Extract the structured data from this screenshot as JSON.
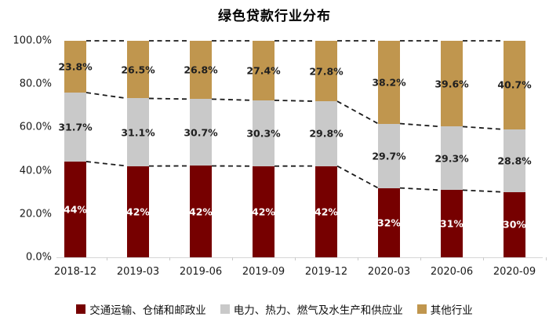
{
  "page": {
    "title": "绿色贷款行业分布"
  },
  "chart_data": {
    "type": "bar",
    "variant": "stacked-100-percent",
    "title": "绿色贷款行业分布",
    "categories": [
      "2018-12",
      "2019-03",
      "2019-06",
      "2019-09",
      "2019-12",
      "2020-03",
      "2020-06",
      "2020-09"
    ],
    "series": [
      {
        "name": "交通运输、仓储和邮政业",
        "color": "#760000",
        "label_color": "#FFFFFF",
        "label_inside": true,
        "values": [
          44,
          42,
          42,
          42,
          42,
          32,
          31,
          30
        ],
        "labels": [
          "44%",
          "42%",
          "42%",
          "42%",
          "42%",
          "32%",
          "31%",
          "30%"
        ]
      },
      {
        "name": "电力、热力、燃气及水生产和供应业",
        "color": "#C9C9C9",
        "label_color": "#1F1F1F",
        "label_inside": false,
        "values": [
          31.7,
          31.1,
          30.7,
          30.3,
          29.8,
          29.7,
          29.3,
          28.8
        ],
        "labels": [
          "31.7%",
          "31.1%",
          "30.7%",
          "30.3%",
          "29.8%",
          "29.7%",
          "29.3%",
          "28.8%"
        ]
      },
      {
        "name": "其他行业",
        "color": "#C0964E",
        "label_color": "#1F1F1F",
        "label_inside": false,
        "values": [
          23.8,
          26.5,
          26.8,
          27.4,
          27.8,
          38.2,
          39.6,
          40.7
        ],
        "labels": [
          "23.8%",
          "26.5%",
          "26.8%",
          "27.4%",
          "27.8%",
          "38.2%",
          "39.6%",
          "40.7%"
        ]
      }
    ],
    "y_axis": {
      "tick_labels": [
        "0.0%",
        "20.0%",
        "40.0%",
        "60.0%",
        "80.0%",
        "100.0%"
      ],
      "tick_values": [
        0,
        20,
        40,
        60,
        80,
        100
      ],
      "min": 0,
      "max": 100
    },
    "gridlines": false,
    "legend_position": "bottom",
    "connector_lines": {
      "style": "dashed",
      "color": "#1A1A1A"
    }
  }
}
